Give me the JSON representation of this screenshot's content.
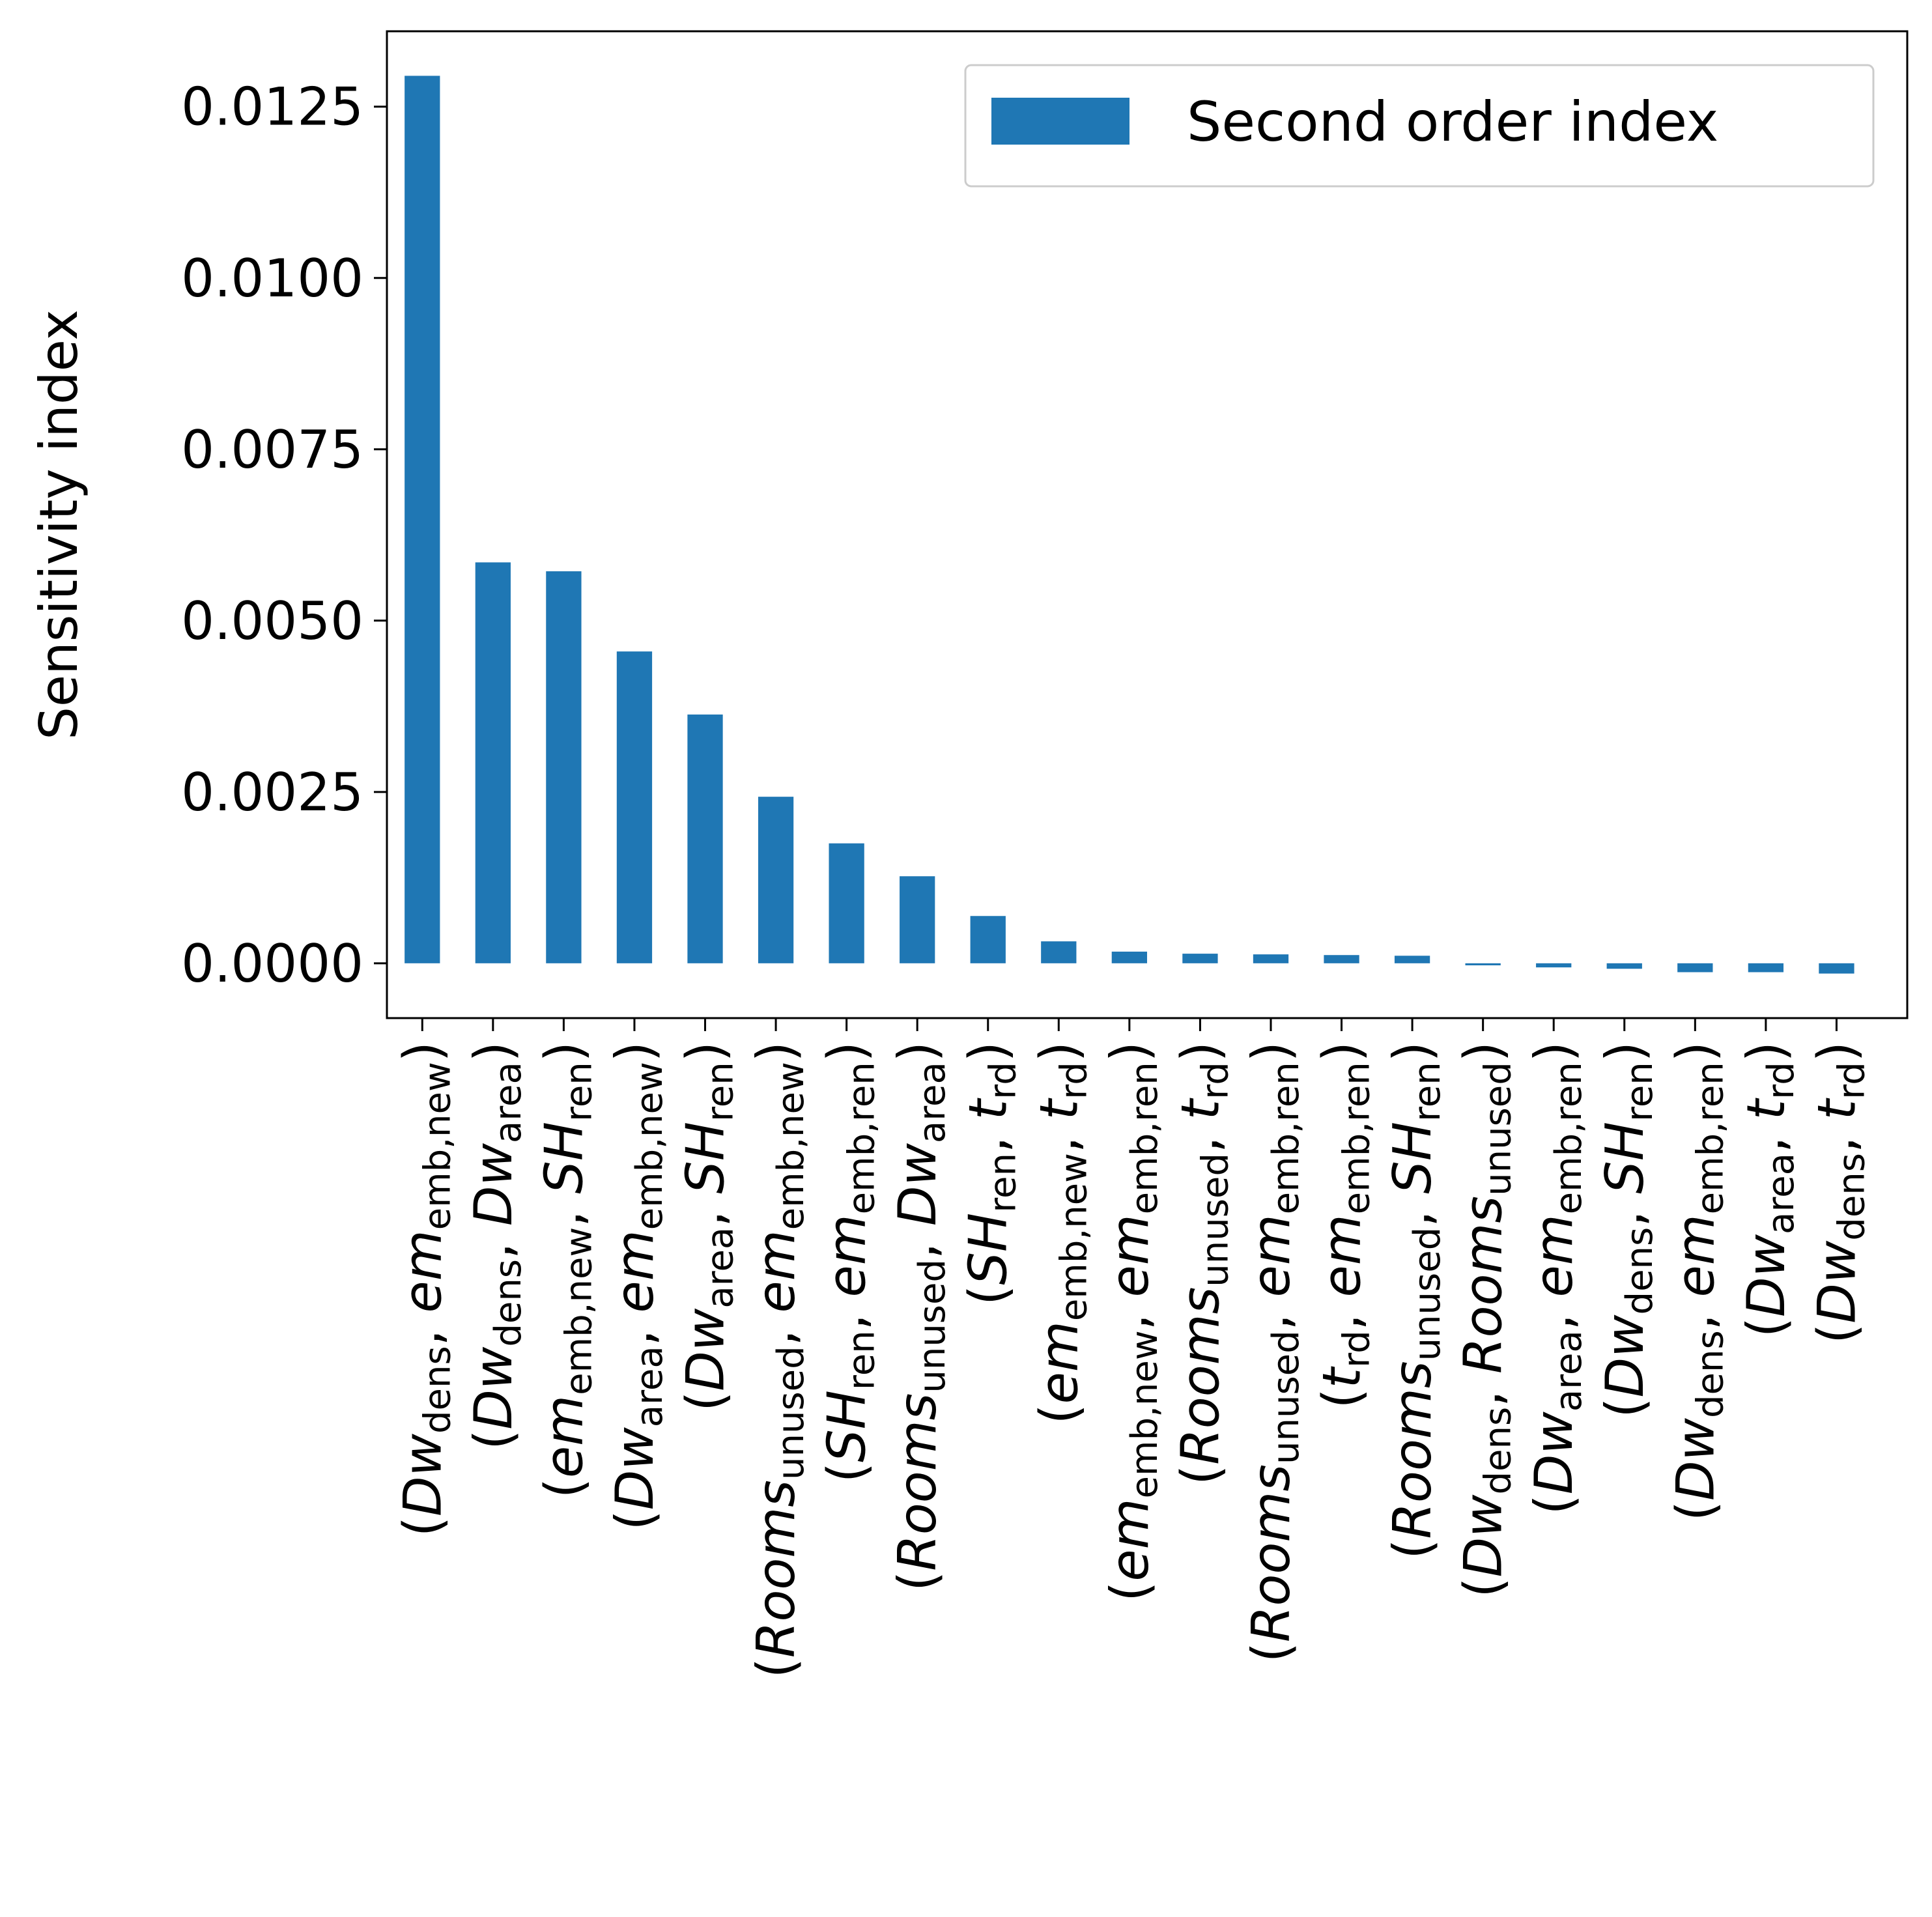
{
  "chart_data": {
    "type": "bar",
    "title": "",
    "xlabel": "",
    "ylabel": "Sensitivity index",
    "ylim": [
      -0.0008,
      0.0136
    ],
    "yticks": [
      0.0,
      0.0025,
      0.005,
      0.0075,
      0.01,
      0.0125
    ],
    "ytick_labels": [
      "0.0000",
      "0.0025",
      "0.0050",
      "0.0075",
      "0.0100",
      "0.0125"
    ],
    "grid": false,
    "legend_position": "top-right",
    "categories": [
      "(Dw_dens, em_emb,new)",
      "(Dw_dens, Dw_area)",
      "(em_emb,new, SH_ren)",
      "(Dw_area, em_emb,new)",
      "(Dw_area, SH_ren)",
      "(Rooms_unused, em_emb,new)",
      "(SH_ren, em_emb,ren)",
      "(Rooms_unused, Dw_area)",
      "(SH_ren, t_rd)",
      "(em_emb,new, t_rd)",
      "(em_emb,new, em_emb,ren)",
      "(Rooms_unused, t_rd)",
      "(Rooms_unused, em_emb,ren)",
      "(t_rd, em_emb,ren)",
      "(Rooms_unused, SH_ren)",
      "(Dw_dens, Rooms_unused)",
      "(Dw_area, em_emb,ren)",
      "(Dw_dens, SH_ren)",
      "(Dw_dens, em_emb,ren)",
      "(Dw_area, t_rd)",
      "(Dw_dens, t_rd)"
    ],
    "category_parts": [
      [
        [
          "Dw",
          "dens"
        ],
        [
          "em",
          "emb,new"
        ]
      ],
      [
        [
          "Dw",
          "dens"
        ],
        [
          "Dw",
          "area"
        ]
      ],
      [
        [
          "em",
          "emb,new"
        ],
        [
          "SH",
          "ren"
        ]
      ],
      [
        [
          "Dw",
          "area"
        ],
        [
          "em",
          "emb,new"
        ]
      ],
      [
        [
          "Dw",
          "area"
        ],
        [
          "SH",
          "ren"
        ]
      ],
      [
        [
          "Rooms",
          "unused"
        ],
        [
          "em",
          "emb,new"
        ]
      ],
      [
        [
          "SH",
          "ren"
        ],
        [
          "em",
          "emb,ren"
        ]
      ],
      [
        [
          "Rooms",
          "unused"
        ],
        [
          "Dw",
          "area"
        ]
      ],
      [
        [
          "SH",
          "ren"
        ],
        [
          "t",
          "rd"
        ]
      ],
      [
        [
          "em",
          "emb,new"
        ],
        [
          "t",
          "rd"
        ]
      ],
      [
        [
          "em",
          "emb,new"
        ],
        [
          "em",
          "emb,ren"
        ]
      ],
      [
        [
          "Rooms",
          "unused"
        ],
        [
          "t",
          "rd"
        ]
      ],
      [
        [
          "Rooms",
          "unused"
        ],
        [
          "em",
          "emb,ren"
        ]
      ],
      [
        [
          "t",
          "rd"
        ],
        [
          "em",
          "emb,ren"
        ]
      ],
      [
        [
          "Rooms",
          "unused"
        ],
        [
          "SH",
          "ren"
        ]
      ],
      [
        [
          "Dw",
          "dens"
        ],
        [
          "Rooms",
          "unused"
        ]
      ],
      [
        [
          "Dw",
          "area"
        ],
        [
          "em",
          "emb,ren"
        ]
      ],
      [
        [
          "Dw",
          "dens"
        ],
        [
          "SH",
          "ren"
        ]
      ],
      [
        [
          "Dw",
          "dens"
        ],
        [
          "em",
          "emb,ren"
        ]
      ],
      [
        [
          "Dw",
          "area"
        ],
        [
          "t",
          "rd"
        ]
      ],
      [
        [
          "Dw",
          "dens"
        ],
        [
          "t",
          "rd"
        ]
      ]
    ],
    "series": [
      {
        "name": "Second order index",
        "color": "#1f77b4",
        "values": [
          0.01295,
          0.00585,
          0.00572,
          0.00455,
          0.00363,
          0.00243,
          0.00175,
          0.00127,
          0.00069,
          0.00032,
          0.00017,
          0.00014,
          0.00013,
          0.00012,
          0.00011,
          -3e-05,
          -6e-05,
          -8e-05,
          -0.00013,
          -0.00013,
          -0.00015
        ]
      }
    ]
  }
}
